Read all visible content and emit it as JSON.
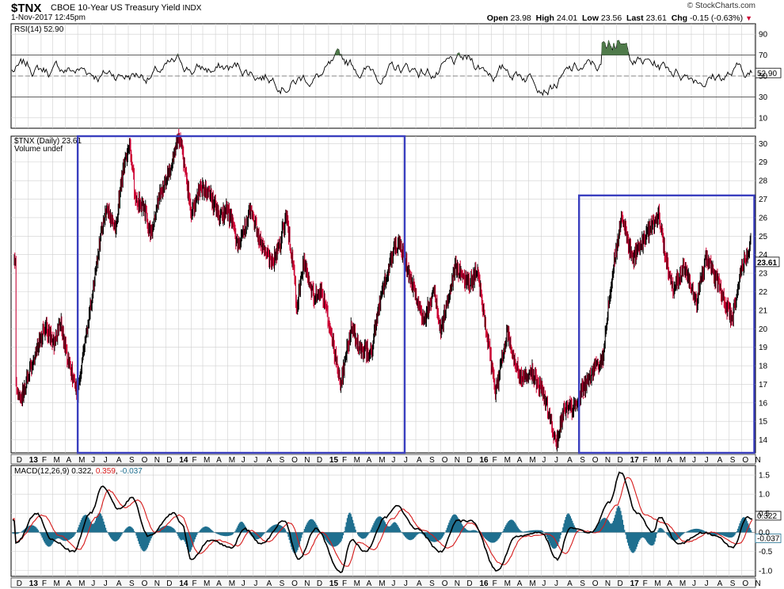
{
  "header": {
    "symbol": "$TNX",
    "description": "CBOE 10-Year US Treasury Yield",
    "exchange": "INDX",
    "datetime": "1-Nov-2017 12:45pm",
    "brand": "© StockCharts.com",
    "open_label": "Open",
    "open": "23.98",
    "high_label": "High",
    "high": "24.01",
    "low_label": "Low",
    "low": "23.56",
    "last_label": "Last",
    "last": "23.61",
    "chg_label": "Chg",
    "chg": "-0.15 (-0.63%)"
  },
  "colors": {
    "up": "#000000",
    "down": "#cc0033",
    "box": "#3a3fbf",
    "macd_signal": "#d61a1a",
    "histogram": "#1f6f8f",
    "rsi_overbought_fill": "#4f7a4a",
    "grid": "#cfcfcf"
  },
  "chart_data": [
    {
      "type": "line",
      "title": "RSI(14) 52.90",
      "indicator": "RSI(14)",
      "current": 52.9,
      "current_label": "52.90",
      "ylim": [
        0,
        100
      ],
      "yticks": [
        "90",
        "70",
        "50",
        "30",
        "10"
      ],
      "reference_lines": [
        70,
        50,
        30
      ]
    },
    {
      "type": "line",
      "title": "$TNX (Daily) 23.61",
      "legend": [
        "$TNX (Daily) 23.61",
        "Volume undef"
      ],
      "ylim": [
        13.3,
        30.4
      ],
      "yticks": [
        "30",
        "29",
        "28",
        "27",
        "26",
        "25",
        "24",
        "23",
        "22",
        "21",
        "20",
        "19",
        "18",
        "17",
        "16",
        "15",
        "14"
      ],
      "last_value": 23.61,
      "last_label": "23.61",
      "points": [
        [
          "2012-12-01",
          17.0
        ],
        [
          "2012-12-15",
          16.2
        ],
        [
          "2013-01-01",
          17.6
        ],
        [
          "2013-01-20",
          18.8
        ],
        [
          "2013-02-10",
          20.1
        ],
        [
          "2013-03-05",
          19.2
        ],
        [
          "2013-03-20",
          20.4
        ],
        [
          "2013-04-05",
          18.4
        ],
        [
          "2013-04-25",
          17.0
        ],
        [
          "2013-05-01",
          16.4
        ],
        [
          "2013-05-20",
          19.4
        ],
        [
          "2013-06-10",
          22.4
        ],
        [
          "2013-06-25",
          24.9
        ],
        [
          "2013-07-10",
          26.4
        ],
        [
          "2013-08-01",
          25.6
        ],
        [
          "2013-08-20",
          28.6
        ],
        [
          "2013-09-05",
          29.9
        ],
        [
          "2013-09-18",
          27.1
        ],
        [
          "2013-10-10",
          26.5
        ],
        [
          "2013-10-25",
          25.1
        ],
        [
          "2013-11-15",
          27.1
        ],
        [
          "2013-12-10",
          28.5
        ],
        [
          "2013-12-31",
          30.3
        ],
        [
          "2014-01-10",
          29.6
        ],
        [
          "2014-02-03",
          26.1
        ],
        [
          "2014-02-20",
          27.5
        ],
        [
          "2014-03-15",
          27.4
        ],
        [
          "2014-04-10",
          26.1
        ],
        [
          "2014-05-01",
          26.4
        ],
        [
          "2014-05-28",
          24.4
        ],
        [
          "2014-06-25",
          26.4
        ],
        [
          "2014-07-20",
          24.7
        ],
        [
          "2014-08-15",
          23.4
        ],
        [
          "2014-09-05",
          24.6
        ],
        [
          "2014-09-20",
          26.2
        ],
        [
          "2014-10-10",
          22.8
        ],
        [
          "2014-10-15",
          21.0
        ],
        [
          "2014-11-01",
          23.6
        ],
        [
          "2014-11-25",
          21.8
        ],
        [
          "2014-12-15",
          22.1
        ],
        [
          "2015-01-10",
          19.5
        ],
        [
          "2015-01-30",
          16.9
        ],
        [
          "2015-02-25",
          20.1
        ],
        [
          "2015-03-20",
          18.9
        ],
        [
          "2015-04-15",
          18.7
        ],
        [
          "2015-05-10",
          22.0
        ],
        [
          "2015-06-10",
          24.4
        ],
        [
          "2015-06-25",
          24.5
        ],
        [
          "2015-07-20",
          22.7
        ],
        [
          "2015-08-20",
          20.4
        ],
        [
          "2015-09-15",
          22.1
        ],
        [
          "2015-10-01",
          19.9
        ],
        [
          "2015-11-05",
          23.4
        ],
        [
          "2015-12-10",
          22.4
        ],
        [
          "2015-12-29",
          23.1
        ],
        [
          "2016-01-20",
          19.8
        ],
        [
          "2016-02-11",
          16.5
        ],
        [
          "2016-03-10",
          19.8
        ],
        [
          "2016-04-10",
          17.3
        ],
        [
          "2016-05-10",
          17.6
        ],
        [
          "2016-06-10",
          16.3
        ],
        [
          "2016-07-08",
          13.7
        ],
        [
          "2016-07-25",
          15.6
        ],
        [
          "2016-08-20",
          15.8
        ],
        [
          "2016-09-10",
          16.8
        ],
        [
          "2016-10-05",
          17.6
        ],
        [
          "2016-10-28",
          18.4
        ],
        [
          "2016-11-09",
          20.8
        ],
        [
          "2016-11-25",
          23.6
        ],
        [
          "2016-12-15",
          26.0
        ],
        [
          "2017-01-10",
          23.7
        ],
        [
          "2017-02-01",
          24.6
        ],
        [
          "2017-03-13",
          26.2
        ],
        [
          "2017-03-30",
          23.9
        ],
        [
          "2017-04-18",
          22.2
        ],
        [
          "2017-05-15",
          23.4
        ],
        [
          "2017-06-14",
          21.5
        ],
        [
          "2017-07-07",
          23.9
        ],
        [
          "2017-08-01",
          22.6
        ],
        [
          "2017-09-08",
          20.5
        ],
        [
          "2017-10-01",
          23.3
        ],
        [
          "2017-10-26",
          24.7
        ],
        [
          "2017-11-01",
          23.61
        ]
      ],
      "annotations": [
        {
          "shape": "rectangle",
          "x0": "2013-05-01",
          "x1": "2015-07-05",
          "y0": 13.3,
          "y1": 30.4
        },
        {
          "shape": "rectangle",
          "x0": "2016-09-01",
          "x1": "2017-11-01",
          "y0": 13.3,
          "y1": 27.2
        }
      ]
    },
    {
      "type": "line",
      "title": "MACD(12,26,9) 0.322, 0.359, -0.037",
      "indicator": "MACD(12,26,9)",
      "macd_label": "0.322",
      "signal_label": "0.359",
      "histogram_label": "-0.037",
      "current": [
        0.322,
        0.359,
        -0.037
      ],
      "ylim": [
        -1.15,
        1.75
      ],
      "yticks": [
        "1.5",
        "1.0",
        "0.5",
        "0.0",
        "-0.5",
        "-1.0"
      ],
      "series": [
        {
          "name": "MACD",
          "points": [
            [
              "2012-12-01",
              -0.3
            ],
            [
              "2013-01-20",
              0.5
            ],
            [
              "2013-03-01",
              -0.2
            ],
            [
              "2013-04-20",
              -0.5
            ],
            [
              "2013-06-01",
              0.5
            ],
            [
              "2013-07-01",
              1.2
            ],
            [
              "2013-08-10",
              0.6
            ],
            [
              "2013-09-10",
              0.9
            ],
            [
              "2013-10-20",
              -0.1
            ],
            [
              "2013-12-20",
              0.5
            ],
            [
              "2014-01-10",
              0.2
            ],
            [
              "2014-02-01",
              -0.7
            ],
            [
              "2014-03-20",
              -0.2
            ],
            [
              "2014-05-10",
              -0.4
            ],
            [
              "2014-06-10",
              0.1
            ],
            [
              "2014-07-20",
              -0.3
            ],
            [
              "2014-09-15",
              0.3
            ],
            [
              "2014-10-20",
              -0.7
            ],
            [
              "2014-12-01",
              0.1
            ],
            [
              "2015-01-31",
              -1.05
            ],
            [
              "2015-02-25",
              -0.2
            ],
            [
              "2015-04-01",
              -0.5
            ],
            [
              "2015-05-20",
              0.4
            ],
            [
              "2015-06-15",
              0.7
            ],
            [
              "2015-08-01",
              0.1
            ],
            [
              "2015-10-01",
              -0.5
            ],
            [
              "2015-11-10",
              0.3
            ],
            [
              "2015-12-15",
              0.3
            ],
            [
              "2016-02-15",
              -1.0
            ],
            [
              "2016-04-01",
              -0.1
            ],
            [
              "2016-06-01",
              0.0
            ],
            [
              "2016-07-10",
              -0.7
            ],
            [
              "2016-08-10",
              0.1
            ],
            [
              "2016-10-01",
              0.0
            ],
            [
              "2016-11-15",
              0.8
            ],
            [
              "2016-12-10",
              1.58
            ],
            [
              "2017-01-20",
              0.5
            ],
            [
              "2017-03-01",
              0.0
            ],
            [
              "2017-03-15",
              0.4
            ],
            [
              "2017-05-01",
              -0.3
            ],
            [
              "2017-07-01",
              0.0
            ],
            [
              "2017-08-01",
              -0.1
            ],
            [
              "2017-09-10",
              -0.4
            ],
            [
              "2017-10-15",
              0.4
            ],
            [
              "2017-11-01",
              0.322
            ]
          ]
        },
        {
          "name": "Signal",
          "points": [
            [
              "2012-12-01",
              -0.25
            ],
            [
              "2013-02-05",
              0.45
            ],
            [
              "2013-03-20",
              -0.1
            ],
            [
              "2013-05-05",
              -0.45
            ],
            [
              "2013-06-15",
              0.4
            ],
            [
              "2013-07-15",
              1.1
            ],
            [
              "2013-08-25",
              0.65
            ],
            [
              "2013-09-25",
              0.85
            ],
            [
              "2013-11-05",
              0.0
            ],
            [
              "2014-01-05",
              0.45
            ],
            [
              "2014-02-20",
              -0.55
            ],
            [
              "2014-04-05",
              -0.2
            ],
            [
              "2014-05-25",
              -0.35
            ],
            [
              "2014-06-25",
              0.05
            ],
            [
              "2014-08-05",
              -0.25
            ],
            [
              "2014-09-30",
              0.25
            ],
            [
              "2014-11-05",
              -0.6
            ],
            [
              "2014-12-15",
              0.0
            ],
            [
              "2015-02-15",
              -0.9
            ],
            [
              "2015-03-15",
              -0.25
            ],
            [
              "2015-04-20",
              -0.45
            ],
            [
              "2015-06-05",
              0.35
            ],
            [
              "2015-06-30",
              0.6
            ],
            [
              "2015-08-20",
              0.05
            ],
            [
              "2015-10-20",
              -0.4
            ],
            [
              "2015-12-10",
              0.25
            ],
            [
              "2016-03-01",
              -0.85
            ],
            [
              "2016-04-20",
              -0.1
            ],
            [
              "2016-06-20",
              -0.05
            ],
            [
              "2016-07-30",
              -0.55
            ],
            [
              "2016-09-01",
              0.05
            ],
            [
              "2016-10-15",
              0.0
            ],
            [
              "2016-12-01",
              0.7
            ],
            [
              "2016-12-28",
              1.45
            ],
            [
              "2017-02-10",
              0.45
            ],
            [
              "2017-03-25",
              0.25
            ],
            [
              "2017-05-20",
              -0.25
            ],
            [
              "2017-07-20",
              0.0
            ],
            [
              "2017-09-25",
              -0.3
            ],
            [
              "2017-11-01",
              0.359
            ]
          ]
        }
      ]
    }
  ],
  "x_axis": {
    "labels": [
      {
        "date": "2012-12-01",
        "text": "D"
      },
      {
        "date": "2013-01-01",
        "text": "13",
        "bold": true
      },
      {
        "date": "2013-02-01",
        "text": "F"
      },
      {
        "date": "2013-03-01",
        "text": "M"
      },
      {
        "date": "2013-04-01",
        "text": "A"
      },
      {
        "date": "2013-05-01",
        "text": "M"
      },
      {
        "date": "2013-06-01",
        "text": "J"
      },
      {
        "date": "2013-07-01",
        "text": "J"
      },
      {
        "date": "2013-08-01",
        "text": "A"
      },
      {
        "date": "2013-09-01",
        "text": "S"
      },
      {
        "date": "2013-10-01",
        "text": "O"
      },
      {
        "date": "2013-11-01",
        "text": "N"
      },
      {
        "date": "2013-12-01",
        "text": "D"
      },
      {
        "date": "2014-01-01",
        "text": "14",
        "bold": true
      },
      {
        "date": "2014-02-01",
        "text": "F"
      },
      {
        "date": "2014-03-01",
        "text": "M"
      },
      {
        "date": "2014-04-01",
        "text": "A"
      },
      {
        "date": "2014-05-01",
        "text": "M"
      },
      {
        "date": "2014-06-01",
        "text": "J"
      },
      {
        "date": "2014-07-01",
        "text": "J"
      },
      {
        "date": "2014-08-01",
        "text": "A"
      },
      {
        "date": "2014-09-01",
        "text": "S"
      },
      {
        "date": "2014-10-01",
        "text": "O"
      },
      {
        "date": "2014-11-01",
        "text": "N"
      },
      {
        "date": "2014-12-01",
        "text": "D"
      },
      {
        "date": "2015-01-01",
        "text": "15",
        "bold": true
      },
      {
        "date": "2015-02-01",
        "text": "F"
      },
      {
        "date": "2015-03-01",
        "text": "M"
      },
      {
        "date": "2015-04-01",
        "text": "A"
      },
      {
        "date": "2015-05-01",
        "text": "M"
      },
      {
        "date": "2015-06-01",
        "text": "J"
      },
      {
        "date": "2015-07-01",
        "text": "J"
      },
      {
        "date": "2015-08-01",
        "text": "A"
      },
      {
        "date": "2015-09-01",
        "text": "S"
      },
      {
        "date": "2015-10-01",
        "text": "O"
      },
      {
        "date": "2015-11-01",
        "text": "N"
      },
      {
        "date": "2015-12-01",
        "text": "D"
      },
      {
        "date": "2016-01-01",
        "text": "16",
        "bold": true
      },
      {
        "date": "2016-02-01",
        "text": "F"
      },
      {
        "date": "2016-03-01",
        "text": "M"
      },
      {
        "date": "2016-04-01",
        "text": "A"
      },
      {
        "date": "2016-05-01",
        "text": "M"
      },
      {
        "date": "2016-06-01",
        "text": "J"
      },
      {
        "date": "2016-07-01",
        "text": "J"
      },
      {
        "date": "2016-08-01",
        "text": "A"
      },
      {
        "date": "2016-09-01",
        "text": "S"
      },
      {
        "date": "2016-10-01",
        "text": "O"
      },
      {
        "date": "2016-11-01",
        "text": "N"
      },
      {
        "date": "2016-12-01",
        "text": "D"
      },
      {
        "date": "2017-01-01",
        "text": "17",
        "bold": true
      },
      {
        "date": "2017-02-01",
        "text": "F"
      },
      {
        "date": "2017-03-01",
        "text": "M"
      },
      {
        "date": "2017-04-01",
        "text": "A"
      },
      {
        "date": "2017-05-01",
        "text": "M"
      },
      {
        "date": "2017-06-01",
        "text": "J"
      },
      {
        "date": "2017-07-01",
        "text": "J"
      },
      {
        "date": "2017-08-01",
        "text": "A"
      },
      {
        "date": "2017-09-01",
        "text": "S"
      },
      {
        "date": "2017-10-01",
        "text": "O"
      },
      {
        "date": "2017-11-01",
        "text": "N"
      }
    ]
  }
}
